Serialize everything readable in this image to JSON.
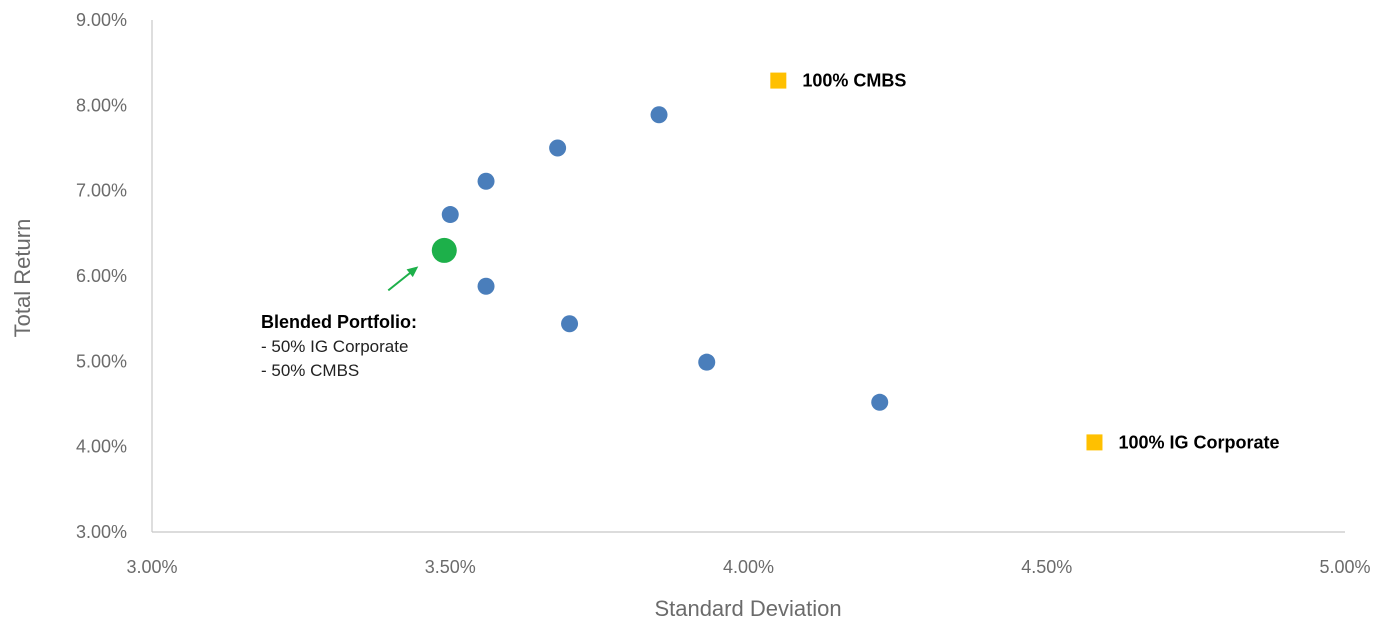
{
  "chart_data": {
    "type": "scatter",
    "title": "",
    "xlabel": "Standard Deviation",
    "ylabel": "Total Return",
    "xlim": [
      0.03,
      0.05
    ],
    "ylim": [
      0.03,
      0.09
    ],
    "x_ticks": [
      "3.00%",
      "3.50%",
      "4.00%",
      "4.50%",
      "5.00%"
    ],
    "y_ticks": [
      "3.00%",
      "4.00%",
      "5.00%",
      "6.00%",
      "7.00%",
      "8.00%",
      "9.00%"
    ],
    "grid": false,
    "series": [
      {
        "marker": "circle",
        "color": "#4a7ebb",
        "points": [
          {
            "x": 0.035,
            "y": 0.0672
          },
          {
            "x": 0.0356,
            "y": 0.0711
          },
          {
            "x": 0.0368,
            "y": 0.075
          },
          {
            "x": 0.0385,
            "y": 0.0789
          },
          {
            "x": 0.0356,
            "y": 0.0588
          },
          {
            "x": 0.037,
            "y": 0.0544
          },
          {
            "x": 0.0393,
            "y": 0.0499
          },
          {
            "x": 0.0422,
            "y": 0.0452
          }
        ]
      },
      {
        "marker": "circle-large",
        "color": "#1db04a",
        "points": [
          {
            "x": 0.0349,
            "y": 0.063
          }
        ]
      },
      {
        "marker": "square",
        "color": "#ffc000",
        "points": [
          {
            "x": 0.0405,
            "y": 0.0829,
            "label": "100% CMBS"
          },
          {
            "x": 0.0458,
            "y": 0.0405,
            "label": "100% IG Corporate"
          }
        ]
      }
    ],
    "annotation": {
      "title": "Blended Portfolio:",
      "lines": [
        "- 50% IG Corporate",
        "- 50% CMBS"
      ],
      "arrow_color": "#1db04a"
    }
  }
}
